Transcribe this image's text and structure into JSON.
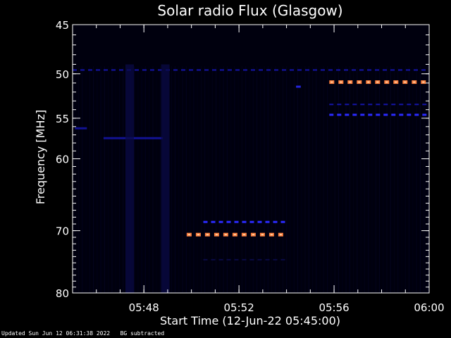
{
  "chart_data": {
    "type": "heatmap",
    "title": "Solar radio Flux (Glasgow)",
    "xlabel": "Start Time (12-Jun-22 05:45:00)",
    "ylabel": "Frequency [MHz]",
    "x_unit": "minutes after 05:45:00",
    "xlim": [
      0,
      15
    ],
    "ylim_top": 45,
    "ylim_bottom": 80,
    "y_scale": "log",
    "x_ticks": [
      {
        "x": 3,
        "label": "05:48"
      },
      {
        "x": 7,
        "label": "05:52"
      },
      {
        "x": 11,
        "label": "05:56"
      },
      {
        "x": 15,
        "label": "06:00"
      }
    ],
    "y_ticks": [
      {
        "y": 45,
        "label": "45"
      },
      {
        "y": 50,
        "label": "50"
      },
      {
        "y": 55,
        "label": "55"
      },
      {
        "y": 60,
        "label": "60"
      },
      {
        "y": 70,
        "label": "70"
      },
      {
        "y": 80,
        "label": "80"
      }
    ],
    "colors": {
      "background": "#000000",
      "plot_background": "#00000e",
      "faint": "#0a0a45",
      "medium": "#1515aa",
      "strong": "#2a2aff",
      "hot": "#ff8040",
      "peak": "#ffd0a0",
      "axis": "#ffffff"
    },
    "features": [
      {
        "kind": "dashed-band",
        "y": 49.6,
        "x_start": 0,
        "x_end": 15,
        "intensity": "medium"
      },
      {
        "kind": "dashed-band",
        "y": 50.9,
        "x_start": 10.8,
        "x_end": 15,
        "intensity": "hot"
      },
      {
        "kind": "dashed-band",
        "y": 53.4,
        "x_start": 10.8,
        "x_end": 15,
        "intensity": "medium"
      },
      {
        "kind": "dashed-band",
        "y": 54.6,
        "x_start": 10.8,
        "x_end": 15,
        "intensity": "strong"
      },
      {
        "kind": "dashed-band",
        "y": 68.7,
        "x_start": 5.5,
        "x_end": 9.0,
        "intensity": "strong"
      },
      {
        "kind": "dashed-band",
        "y": 70.6,
        "x_start": 4.8,
        "x_end": 9.0,
        "intensity": "hot"
      },
      {
        "kind": "dashed-band",
        "y": 74.5,
        "x_start": 5.5,
        "x_end": 9.0,
        "intensity": "faint"
      },
      {
        "kind": "spot",
        "y": 56.2,
        "x_start": 0.1,
        "x_end": 0.6,
        "intensity": "medium"
      },
      {
        "kind": "spot",
        "y": 57.4,
        "x_start": 1.3,
        "x_end": 3.8,
        "intensity": "medium"
      },
      {
        "kind": "spot",
        "y": 51.4,
        "x_start": 9.4,
        "x_end": 9.6,
        "intensity": "strong"
      },
      {
        "kind": "vertical-streak",
        "x": 2.4,
        "y_start": 49,
        "y_end": 80,
        "intensity": "faint"
      },
      {
        "kind": "vertical-streak",
        "x": 3.9,
        "y_start": 49,
        "y_end": 80,
        "intensity": "faint"
      }
    ]
  },
  "footer": {
    "updated": "Updated Sun Jun 12 06:31:38 2022",
    "note": "BG subtracted"
  }
}
